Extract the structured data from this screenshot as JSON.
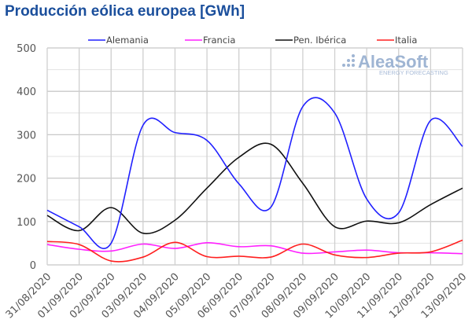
{
  "chart_data": {
    "type": "line",
    "title": "Producción eólica europea [GWh]",
    "xlabel": "",
    "ylabel": "",
    "ylim": [
      0,
      500
    ],
    "yticks": [
      0,
      100,
      200,
      300,
      400,
      500
    ],
    "grid": true,
    "legend_position": "top",
    "categories": [
      "31/08/2020",
      "01/09/2020",
      "02/09/2020",
      "03/09/2020",
      "04/09/2020",
      "05/09/2020",
      "06/09/2020",
      "07/09/2020",
      "08/09/2020",
      "09/09/2020",
      "10/09/2020",
      "11/09/2020",
      "12/09/2020",
      "13/09/2020"
    ],
    "series": [
      {
        "name": "Alemania",
        "color": "#2020ff",
        "values": [
          126,
          88,
          50,
          322,
          305,
          287,
          187,
          133,
          365,
          350,
          152,
          120,
          333,
          273
        ]
      },
      {
        "name": "Francia",
        "color": "#ff20ff",
        "values": [
          47,
          36,
          32,
          48,
          38,
          51,
          42,
          44,
          27,
          30,
          34,
          28,
          28,
          26
        ]
      },
      {
        "name": "Pen. Ibérica",
        "color": "#111111",
        "values": [
          114,
          79,
          132,
          73,
          103,
          177,
          248,
          278,
          188,
          88,
          101,
          97,
          139,
          177
        ]
      },
      {
        "name": "Italia",
        "color": "#ff2020",
        "values": [
          54,
          47,
          9,
          18,
          52,
          19,
          20,
          18,
          48,
          23,
          17,
          27,
          30,
          57
        ]
      }
    ]
  },
  "logo": {
    "name": "AleaSoft",
    "tagline": "ENERGY FORECASTING"
  }
}
